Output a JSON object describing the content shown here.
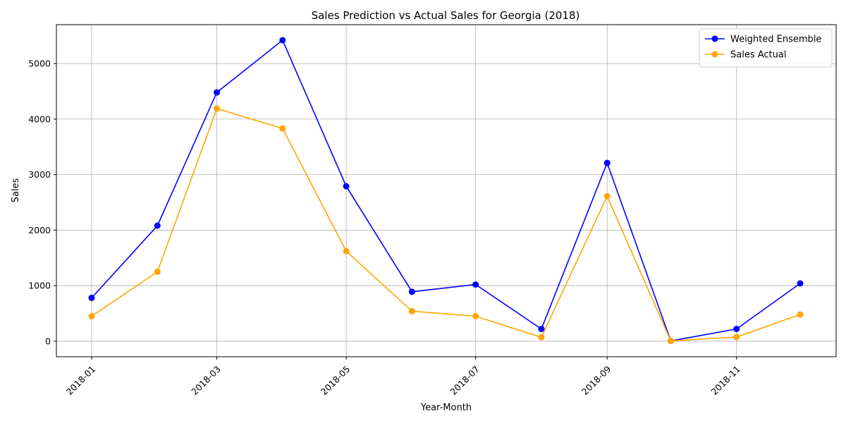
{
  "chart_data": {
    "type": "line",
    "title": "Sales Prediction vs Actual Sales for Georgia (2018)",
    "xlabel": "Year-Month",
    "ylabel": "Sales",
    "x": [
      "2018-01-01",
      "2018-02-01",
      "2018-03-01",
      "2018-04-01",
      "2018-05-01",
      "2018-06-01",
      "2018-07-01",
      "2018-08-01",
      "2018-09-01",
      "2018-10-01",
      "2018-11-01",
      "2018-12-01"
    ],
    "x_tick_labels": [
      "2018-01",
      "2018-03",
      "2018-05",
      "2018-07",
      "2018-09",
      "2018-11"
    ],
    "y_ticks": [
      0,
      1000,
      2000,
      3000,
      4000,
      5000
    ],
    "ylim": [
      -280,
      5700
    ],
    "grid": true,
    "legend_position": "top-right",
    "series": [
      {
        "name": "Weighted Ensemble",
        "color": "#0000ff",
        "marker": "circle",
        "values": [
          780,
          2080,
          4480,
          5420,
          2790,
          890,
          1020,
          220,
          3210,
          5,
          220,
          1040
        ]
      },
      {
        "name": "Sales Actual",
        "color": "#ffa500",
        "marker": "circle",
        "values": [
          450,
          1250,
          4190,
          3830,
          1620,
          540,
          450,
          70,
          2610,
          5,
          75,
          480
        ]
      }
    ]
  }
}
